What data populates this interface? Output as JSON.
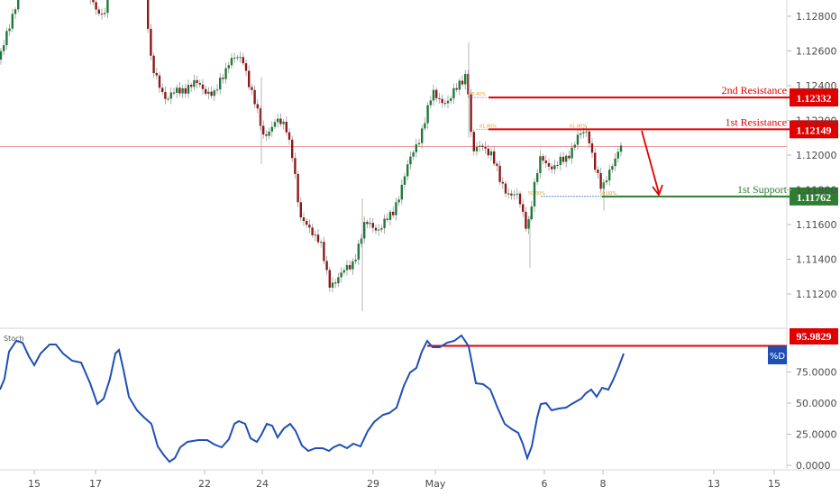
{
  "chart_data": {
    "type": "candlestick",
    "x_labels": [
      "15",
      "17",
      "22",
      "24",
      "29",
      "May",
      "6",
      "8",
      "13",
      "15"
    ],
    "price_panel": {
      "y_ticks": [
        "1.12800",
        "1.12600",
        "1.12400",
        "1.12200",
        "1.12000",
        "1.11800",
        "1.11600",
        "1.11400",
        "1.11200"
      ],
      "y_range": [
        1.1105,
        1.1295
      ],
      "current_price_line": 1.1205,
      "colors": {
        "up": "#1e7a3a",
        "down": "#8b1a1a",
        "resistance": "#e00000",
        "support": "#2e7d32"
      },
      "levels": [
        {
          "label": "2nd Resistance",
          "value": "1.12332",
          "price": 1.12332,
          "kind": "resistance"
        },
        {
          "label": "1st Resistance",
          "value": "1.12149",
          "price": 1.12149,
          "kind": "resistance"
        },
        {
          "label": "1st Support",
          "value": "1.11762",
          "price": 1.11762,
          "kind": "support"
        }
      ],
      "fib_labels": [
        "61.80%",
        "61.80%",
        "50.00%",
        "50.00%",
        "76.40%"
      ]
    },
    "stoch_panel": {
      "title": "Stoch",
      "series_name": "%D",
      "marker_label": "95.9829",
      "y_ticks": [
        "75.0000",
        "50.0000",
        "25.0000",
        "0.0000"
      ],
      "y_range": [
        0,
        100
      ],
      "line_color": "#1f4fb5",
      "marker_color": "#e00000",
      "highlight_level": 95.9829
    }
  }
}
